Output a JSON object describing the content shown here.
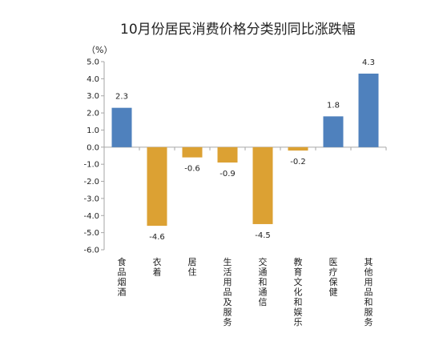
{
  "chart_data": {
    "type": "bar",
    "title": "10月份居民消费价格分类别同比涨跌幅",
    "ylabel": "（%）",
    "ylim": [
      -6.0,
      5.0
    ],
    "ytick_step": 1.0,
    "yticks": [
      "5.0",
      "4.0",
      "3.0",
      "2.0",
      "1.0",
      "0.0",
      "-1.0",
      "-2.0",
      "-3.0",
      "-4.0",
      "-5.0",
      "-6.0"
    ],
    "grid": false,
    "categories": [
      "食品烟酒",
      "衣着",
      "居住",
      "生活用品及服务",
      "交通和通信",
      "教育文化和娱乐",
      "医疗保健",
      "其他用品和服务"
    ],
    "values": [
      2.3,
      -4.6,
      -0.6,
      -0.9,
      -4.5,
      -0.2,
      1.8,
      4.3
    ],
    "value_labels": [
      "2.3",
      "-4.6",
      "-0.6",
      "-0.9",
      "-4.5",
      "-0.2",
      "1.8",
      "4.3"
    ],
    "colors": {
      "positive": "#4f81bd",
      "negative": "#dca133",
      "axis": "#a6a6a6"
    }
  }
}
